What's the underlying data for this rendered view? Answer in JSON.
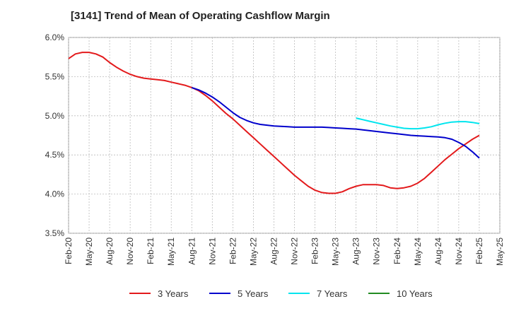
{
  "chart_data": {
    "type": "line",
    "title": "[3141]  Trend of Mean of Operating Cashflow Margin",
    "xlabel": "",
    "ylabel": "",
    "ylim": [
      3.5,
      6.0
    ],
    "yticks": [
      "3.5%",
      "4.0%",
      "4.5%",
      "5.0%",
      "5.5%",
      "6.0%"
    ],
    "ytick_values": [
      3.5,
      4.0,
      4.5,
      5.0,
      5.5,
      6.0
    ],
    "x_ticks": [
      "Feb-20",
      "May-20",
      "Aug-20",
      "Nov-20",
      "Feb-21",
      "May-21",
      "Aug-21",
      "Nov-21",
      "Feb-22",
      "May-22",
      "Aug-22",
      "Nov-22",
      "Feb-23",
      "May-23",
      "Aug-23",
      "Nov-23",
      "Feb-24",
      "May-24",
      "Aug-24",
      "Nov-24",
      "Feb-25",
      "May-25"
    ],
    "grid": true,
    "legend_position": "bottom",
    "series": [
      {
        "name": "3 Years",
        "color": "#e31a1c",
        "points": [
          [
            "Feb-20",
            5.73
          ],
          [
            "Mar-20",
            5.79
          ],
          [
            "Apr-20",
            5.81
          ],
          [
            "May-20",
            5.81
          ],
          [
            "Jun-20",
            5.79
          ],
          [
            "Jul-20",
            5.75
          ],
          [
            "Aug-20",
            5.68
          ],
          [
            "Sep-20",
            5.62
          ],
          [
            "Oct-20",
            5.57
          ],
          [
            "Nov-20",
            5.53
          ],
          [
            "Dec-20",
            5.5
          ],
          [
            "Jan-21",
            5.48
          ],
          [
            "Feb-21",
            5.47
          ],
          [
            "Mar-21",
            5.46
          ],
          [
            "Apr-21",
            5.45
          ],
          [
            "May-21",
            5.43
          ],
          [
            "Jun-21",
            5.41
          ],
          [
            "Jul-21",
            5.39
          ],
          [
            "Aug-21",
            5.36
          ],
          [
            "Sep-21",
            5.32
          ],
          [
            "Oct-21",
            5.26
          ],
          [
            "Nov-21",
            5.19
          ],
          [
            "Dec-21",
            5.11
          ],
          [
            "Jan-22",
            5.03
          ],
          [
            "Feb-22",
            4.96
          ],
          [
            "Mar-22",
            4.88
          ],
          [
            "Apr-22",
            4.8
          ],
          [
            "May-22",
            4.72
          ],
          [
            "Jun-22",
            4.64
          ],
          [
            "Jul-22",
            4.56
          ],
          [
            "Aug-22",
            4.48
          ],
          [
            "Sep-22",
            4.4
          ],
          [
            "Oct-22",
            4.32
          ],
          [
            "Nov-22",
            4.24
          ],
          [
            "Dec-22",
            4.17
          ],
          [
            "Jan-23",
            4.1
          ],
          [
            "Feb-23",
            4.05
          ],
          [
            "Mar-23",
            4.02
          ],
          [
            "Apr-23",
            4.01
          ],
          [
            "May-23",
            4.01
          ],
          [
            "Jun-23",
            4.03
          ],
          [
            "Jul-23",
            4.07
          ],
          [
            "Aug-23",
            4.1
          ],
          [
            "Sep-23",
            4.12
          ],
          [
            "Oct-23",
            4.12
          ],
          [
            "Nov-23",
            4.12
          ],
          [
            "Dec-23",
            4.11
          ],
          [
            "Jan-24",
            4.08
          ],
          [
            "Feb-24",
            4.07
          ],
          [
            "Mar-24",
            4.08
          ],
          [
            "Apr-24",
            4.1
          ],
          [
            "May-24",
            4.14
          ],
          [
            "Jun-24",
            4.2
          ],
          [
            "Jul-24",
            4.28
          ],
          [
            "Aug-24",
            4.36
          ],
          [
            "Sep-24",
            4.44
          ],
          [
            "Oct-24",
            4.51
          ],
          [
            "Nov-24",
            4.58
          ],
          [
            "Dec-24",
            4.64
          ],
          [
            "Jan-25",
            4.7
          ],
          [
            "Feb-25",
            4.75
          ]
        ]
      },
      {
        "name": "5 Years",
        "color": "#0000cc",
        "points": [
          [
            "Aug-21",
            5.36
          ],
          [
            "Sep-21",
            5.33
          ],
          [
            "Oct-21",
            5.29
          ],
          [
            "Nov-21",
            5.24
          ],
          [
            "Dec-21",
            5.18
          ],
          [
            "Jan-22",
            5.11
          ],
          [
            "Feb-22",
            5.04
          ],
          [
            "Mar-22",
            4.98
          ],
          [
            "Apr-22",
            4.94
          ],
          [
            "May-22",
            4.91
          ],
          [
            "Jun-22",
            4.89
          ],
          [
            "Jul-22",
            4.88
          ],
          [
            "Aug-22",
            4.87
          ],
          [
            "Sep-22",
            4.865
          ],
          [
            "Oct-22",
            4.86
          ],
          [
            "Nov-22",
            4.855
          ],
          [
            "Dec-22",
            4.855
          ],
          [
            "Jan-23",
            4.855
          ],
          [
            "Feb-23",
            4.855
          ],
          [
            "Mar-23",
            4.855
          ],
          [
            "Apr-23",
            4.85
          ],
          [
            "May-23",
            4.845
          ],
          [
            "Jun-23",
            4.84
          ],
          [
            "Jul-23",
            4.835
          ],
          [
            "Aug-23",
            4.83
          ],
          [
            "Sep-23",
            4.82
          ],
          [
            "Oct-23",
            4.81
          ],
          [
            "Nov-23",
            4.8
          ],
          [
            "Dec-23",
            4.79
          ],
          [
            "Jan-24",
            4.78
          ],
          [
            "Feb-24",
            4.77
          ],
          [
            "Mar-24",
            4.76
          ],
          [
            "Apr-24",
            4.75
          ],
          [
            "May-24",
            4.745
          ],
          [
            "Jun-24",
            4.74
          ],
          [
            "Jul-24",
            4.735
          ],
          [
            "Aug-24",
            4.73
          ],
          [
            "Sep-24",
            4.72
          ],
          [
            "Oct-24",
            4.7
          ],
          [
            "Nov-24",
            4.66
          ],
          [
            "Dec-24",
            4.61
          ],
          [
            "Jan-25",
            4.54
          ],
          [
            "Feb-25",
            4.46
          ]
        ]
      },
      {
        "name": "7 Years",
        "color": "#00e5ee",
        "points": [
          [
            "Aug-23",
            4.97
          ],
          [
            "Sep-23",
            4.95
          ],
          [
            "Oct-23",
            4.93
          ],
          [
            "Nov-23",
            4.91
          ],
          [
            "Dec-23",
            4.89
          ],
          [
            "Jan-24",
            4.87
          ],
          [
            "Feb-24",
            4.855
          ],
          [
            "Mar-24",
            4.84
          ],
          [
            "Apr-24",
            4.835
          ],
          [
            "May-24",
            4.835
          ],
          [
            "Jun-24",
            4.845
          ],
          [
            "Jul-24",
            4.86
          ],
          [
            "Aug-24",
            4.885
          ],
          [
            "Sep-24",
            4.905
          ],
          [
            "Oct-24",
            4.92
          ],
          [
            "Nov-24",
            4.925
          ],
          [
            "Dec-24",
            4.925
          ],
          [
            "Jan-25",
            4.915
          ],
          [
            "Feb-25",
            4.9
          ]
        ]
      },
      {
        "name": "10 Years",
        "color": "#228b22",
        "points": []
      }
    ]
  }
}
